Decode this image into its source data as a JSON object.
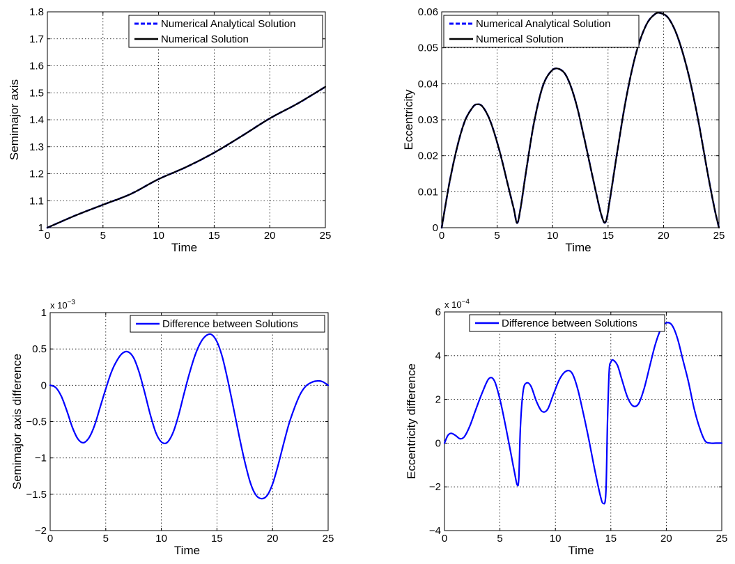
{
  "colors": {
    "numerical": "#000000",
    "analytical": "#0000ff",
    "difference": "#0000ff",
    "grid": "#000000"
  },
  "chart_data": [
    {
      "id": "semimajor",
      "type": "line",
      "xlabel": "Time",
      "ylabel": "Semimajor axis",
      "xlim": [
        0,
        25
      ],
      "ylim": [
        1,
        1.8
      ],
      "xticks": [
        0,
        5,
        10,
        15,
        20,
        25
      ],
      "yticks": [
        1,
        1.1,
        1.2,
        1.3,
        1.4,
        1.5,
        1.6,
        1.7,
        1.8
      ],
      "ytick_labels": [
        "1",
        "1.1",
        "1.2",
        "1.3",
        "1.4",
        "1.5",
        "1.6",
        "1.7",
        "1.8"
      ],
      "multiplier_base": "",
      "multiplier_exp": "",
      "grid": true,
      "legend_position": "top-right",
      "series": [
        {
          "name": "Numerical Analytical Solution",
          "style": "dashed",
          "color": "#0000ff",
          "x": [
            0,
            2.5,
            5,
            7.5,
            10,
            12.5,
            15,
            17.5,
            20,
            22.5,
            25
          ],
          "y": [
            1.0,
            1.045,
            1.085,
            1.125,
            1.18,
            1.225,
            1.278,
            1.34,
            1.405,
            1.46,
            1.522
          ]
        },
        {
          "name": "Numerical Solution",
          "style": "solid",
          "color": "#000000",
          "x": [
            0,
            2.5,
            5,
            7.5,
            10,
            12.5,
            15,
            17.5,
            20,
            22.5,
            25
          ],
          "y": [
            1.0,
            1.045,
            1.085,
            1.125,
            1.18,
            1.225,
            1.278,
            1.34,
            1.405,
            1.46,
            1.522
          ]
        }
      ]
    },
    {
      "id": "eccentricity",
      "type": "line",
      "xlabel": "Time",
      "ylabel": "Eccentricity",
      "xlim": [
        0,
        25
      ],
      "ylim": [
        0,
        0.06
      ],
      "xticks": [
        0,
        5,
        10,
        15,
        20,
        25
      ],
      "yticks": [
        0,
        0.01,
        0.02,
        0.03,
        0.04,
        0.05,
        0.06
      ],
      "ytick_labels": [
        "0",
        "0.01",
        "0.02",
        "0.03",
        "0.04",
        "0.05",
        "0.06"
      ],
      "multiplier_base": "",
      "multiplier_exp": "",
      "grid": true,
      "legend_position": "top-left",
      "series": [
        {
          "name": "Numerical Analytical Solution",
          "style": "dashed",
          "color": "#0000ff",
          "x": [
            0,
            0.7,
            1.4,
            2.1,
            2.8,
            3.2,
            3.7,
            4.4,
            5.2,
            6.0,
            6.5,
            6.8,
            7.1,
            7.6,
            8.3,
            9.1,
            9.9,
            10.6,
            11.3,
            12.1,
            12.9,
            13.7,
            14.4,
            14.8,
            15.2,
            15.8,
            16.6,
            17.5,
            18.4,
            19.2,
            19.8,
            20.5,
            21.3,
            22.2,
            23.1,
            24.0,
            24.6,
            25.0
          ],
          "y": [
            0,
            0.0125,
            0.0225,
            0.0297,
            0.0335,
            0.0343,
            0.0336,
            0.0295,
            0.0215,
            0.0115,
            0.0052,
            0.0013,
            0.0052,
            0.0155,
            0.0288,
            0.0392,
            0.0436,
            0.0441,
            0.0418,
            0.0348,
            0.0242,
            0.0128,
            0.0035,
            0.0017,
            0.0085,
            0.0205,
            0.0355,
            0.0482,
            0.0561,
            0.0593,
            0.0596,
            0.058,
            0.0528,
            0.0433,
            0.0303,
            0.0148,
            0.0053,
            0.0
          ]
        },
        {
          "name": "Numerical Solution",
          "style": "solid",
          "color": "#000000",
          "x": [
            0,
            0.7,
            1.4,
            2.1,
            2.8,
            3.2,
            3.7,
            4.4,
            5.2,
            6.0,
            6.5,
            6.8,
            7.1,
            7.6,
            8.3,
            9.1,
            9.9,
            10.6,
            11.3,
            12.1,
            12.9,
            13.7,
            14.4,
            14.8,
            15.2,
            15.8,
            16.6,
            17.5,
            18.4,
            19.2,
            19.8,
            20.5,
            21.3,
            22.2,
            23.1,
            24.0,
            24.6,
            25.0
          ],
          "y": [
            0,
            0.0125,
            0.0225,
            0.0297,
            0.0335,
            0.0343,
            0.0336,
            0.0295,
            0.0215,
            0.0115,
            0.0052,
            0.0013,
            0.0052,
            0.0155,
            0.0288,
            0.0392,
            0.0436,
            0.0441,
            0.0418,
            0.0348,
            0.0242,
            0.0128,
            0.0035,
            0.0017,
            0.0085,
            0.0205,
            0.0355,
            0.0482,
            0.0561,
            0.0593,
            0.0596,
            0.058,
            0.0528,
            0.0433,
            0.0303,
            0.0148,
            0.0053,
            0.0
          ]
        }
      ]
    },
    {
      "id": "semimajor-diff",
      "type": "line",
      "xlabel": "Time",
      "ylabel": "Semimajor axis difference",
      "xlim": [
        0,
        25
      ],
      "ylim": [
        -2,
        1
      ],
      "xticks": [
        0,
        5,
        10,
        15,
        20,
        25
      ],
      "yticks": [
        -2,
        -1.5,
        -1,
        -0.5,
        0,
        0.5,
        1
      ],
      "ytick_labels": [
        "−2",
        "−1.5",
        "−1",
        "−0.5",
        "0",
        "0.5",
        "1"
      ],
      "multiplier_base": "x 10",
      "multiplier_exp": "−3",
      "grid": true,
      "legend_position": "top-right",
      "series": [
        {
          "name": "Difference between Solutions",
          "style": "solid",
          "color": "#0000ff",
          "x": [
            0,
            0.5,
            1.0,
            1.5,
            2.0,
            2.5,
            3.0,
            3.5,
            4.0,
            4.5,
            5.0,
            5.5,
            6.0,
            6.5,
            7.0,
            7.5,
            8.0,
            8.5,
            9.0,
            9.5,
            10.0,
            10.5,
            11.0,
            11.5,
            12.0,
            12.5,
            13.0,
            13.5,
            14.0,
            14.5,
            15.0,
            15.5,
            16.0,
            16.5,
            17.0,
            17.5,
            18.0,
            18.5,
            19.0,
            19.5,
            20.0,
            20.5,
            21.0,
            21.5,
            22.0,
            22.5,
            23.0,
            23.5,
            24.0,
            24.5,
            25.0
          ],
          "y": [
            0,
            -0.03,
            -0.15,
            -0.35,
            -0.58,
            -0.74,
            -0.79,
            -0.72,
            -0.55,
            -0.3,
            -0.05,
            0.18,
            0.34,
            0.44,
            0.46,
            0.38,
            0.18,
            -0.1,
            -0.4,
            -0.65,
            -0.78,
            -0.79,
            -0.67,
            -0.44,
            -0.14,
            0.15,
            0.4,
            0.58,
            0.68,
            0.7,
            0.6,
            0.38,
            0.05,
            -0.32,
            -0.7,
            -1.05,
            -1.34,
            -1.51,
            -1.56,
            -1.52,
            -1.36,
            -1.1,
            -0.8,
            -0.52,
            -0.3,
            -0.12,
            -0.01,
            0.04,
            0.06,
            0.05,
            0.0
          ]
        }
      ]
    },
    {
      "id": "eccentricity-diff",
      "type": "line",
      "xlabel": "Time",
      "ylabel": "Eccentricity difference",
      "xlim": [
        0,
        25
      ],
      "ylim": [
        -4,
        6
      ],
      "xticks": [
        0,
        5,
        10,
        15,
        20,
        25
      ],
      "yticks": [
        -4,
        -2,
        0,
        2,
        4,
        6
      ],
      "ytick_labels": [
        "−4",
        "−2",
        "0",
        "2",
        "4",
        "6"
      ],
      "multiplier_base": "x 10",
      "multiplier_exp": "−4",
      "grid": true,
      "legend_position": "top-left",
      "series": [
        {
          "name": "Difference between Solutions",
          "style": "solid",
          "color": "#0000ff",
          "x": [
            0,
            0.3,
            0.6,
            1.0,
            1.4,
            1.8,
            2.3,
            2.8,
            3.4,
            4.0,
            4.5,
            5.0,
            5.5,
            6.0,
            6.3,
            6.55,
            6.7,
            6.85,
            7.1,
            7.4,
            7.8,
            8.3,
            8.8,
            9.3,
            9.8,
            10.4,
            11.0,
            11.5,
            12.0,
            12.5,
            13.0,
            13.5,
            14.0,
            14.3,
            14.55,
            14.7,
            14.85,
            15.0,
            15.2,
            15.6,
            16.0,
            16.5,
            17.0,
            17.5,
            18.0,
            18.5,
            19.0,
            19.5,
            20.0,
            20.5,
            21.0,
            21.5,
            22.0,
            22.5,
            23.0,
            23.5,
            24.0,
            24.5,
            25.0
          ],
          "y": [
            0,
            0.35,
            0.45,
            0.35,
            0.2,
            0.3,
            0.8,
            1.5,
            2.3,
            2.95,
            2.85,
            2.0,
            0.8,
            -0.5,
            -1.3,
            -1.9,
            -1.6,
            0.8,
            2.4,
            2.75,
            2.6,
            1.9,
            1.45,
            1.55,
            2.2,
            2.95,
            3.3,
            3.2,
            2.5,
            1.4,
            0.2,
            -1.1,
            -2.3,
            -2.75,
            -2.3,
            1.0,
            3.3,
            3.7,
            3.8,
            3.55,
            2.9,
            2.1,
            1.7,
            1.8,
            2.5,
            3.5,
            4.5,
            5.2,
            5.5,
            5.4,
            4.8,
            3.8,
            2.8,
            1.6,
            0.7,
            0.1,
            0.0,
            0.0,
            0.0
          ]
        }
      ]
    }
  ]
}
